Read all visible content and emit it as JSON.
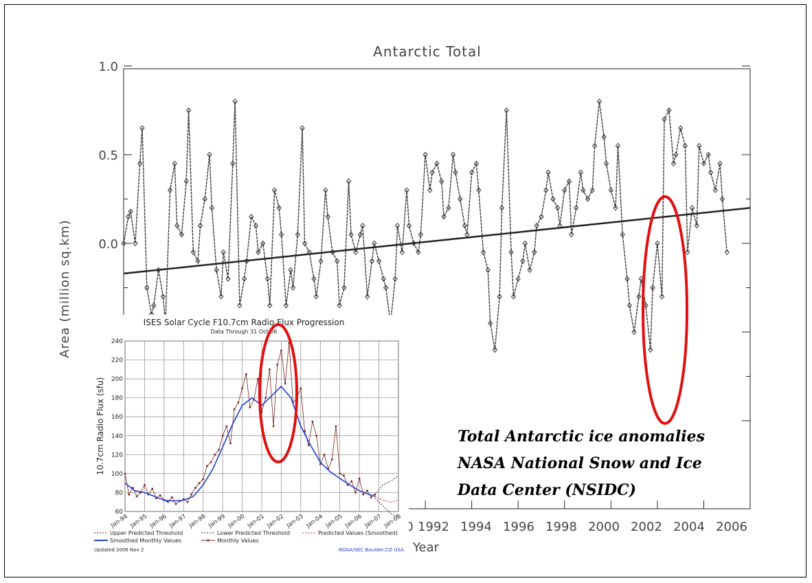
{
  "main_chart": {
    "title": "Antarctic Total",
    "ylabel": "Area (million sq.km)",
    "xlabel": "Year",
    "y_tick_labels": [
      "1.0",
      "0.5",
      "0.0"
    ],
    "x_tick_labels": [
      "0",
      "1992",
      "1994",
      "1996",
      "1998",
      "2000",
      "2002",
      "2004",
      "2006"
    ]
  },
  "inset_chart": {
    "title": "ISES Solar Cycle F10.7cm Radio Flux Progression",
    "subtitle": "Data Through 31 Oct 06",
    "ylabel": "10.7cm Radio Flux (sfu)",
    "y_tick_labels": [
      "60",
      "80",
      "100",
      "120",
      "140",
      "160",
      "180",
      "200",
      "220",
      "240"
    ],
    "x_tick_labels": [
      "Jan-94",
      "Jan-95",
      "Jan-96",
      "Jan-97",
      "Jan-98",
      "Jan-99",
      "Jan-00",
      "Jan-01",
      "Jan-02",
      "Jan-03",
      "Jan-04",
      "Jan-05",
      "Jan-06",
      "Jan-07",
      "Jan-08"
    ],
    "legend": [
      "Upper Predicted Threshold",
      "Lower Predicted Threshold",
      "Predicted Values (Smoothed)",
      "Smoothed Monthly Values",
      "Monthly Values"
    ],
    "updated": "Updated 2006 Nov 2",
    "credit": "NOAA/SEC Boulder,CO USA"
  },
  "caption_lines": [
    "Total Antarctic ice anomalies",
    "NASA National Snow and Ice",
    "Data Center (NSIDC)"
  ],
  "colors": {
    "highlight": "#e01010",
    "main_series": "#3a3a3a",
    "smoothed": "#1f3fd0",
    "monthly": "#7a2020",
    "predicted": "#d02020"
  },
  "chart_data": [
    {
      "type": "line",
      "title": "Antarctic Total",
      "xlabel": "Year",
      "ylabel": "Area (million sq.km)",
      "ylim": [
        -1.0,
        1.0
      ],
      "xlim": [
        1979,
        2006
      ],
      "x_ticks": [
        1992,
        1994,
        1996,
        1998,
        2000,
        2002,
        2004,
        2006
      ],
      "y_ticks": [
        1.0,
        0.5,
        0.0
      ],
      "trend_line": {
        "x": [
          1979,
          2006
        ],
        "y": [
          -0.17,
          0.2
        ]
      },
      "series": [
        {
          "x": [
            1979.0,
            1979.2,
            1979.3,
            1979.5,
            1979.7,
            1979.8,
            1980.0,
            1980.2,
            1980.3,
            1980.5,
            1980.7,
            1980.8,
            1981.0,
            1981.2,
            1981.3,
            1981.5,
            1981.7,
            1981.8,
            1982.0,
            1982.2,
            1982.3,
            1982.5,
            1982.7,
            1982.8,
            1983.0,
            1983.2,
            1983.3,
            1983.5,
            1983.7,
            1983.8,
            1984.0,
            1984.2,
            1984.3,
            1984.5,
            1984.7,
            1984.8,
            1985.0,
            1985.2,
            1985.3,
            1985.5,
            1985.7,
            1985.8,
            1986.0,
            1986.2,
            1986.3,
            1986.5,
            1986.7,
            1986.8,
            1987.0,
            1987.2,
            1987.3,
            1987.5,
            1987.7,
            1987.8,
            1988.0,
            1988.2,
            1988.3,
            1988.5,
            1988.7,
            1988.8,
            1989.0,
            1989.2,
            1989.3,
            1989.5,
            1989.7,
            1989.8,
            1990.0,
            1990.2,
            1990.3,
            1990.5,
            1990.7,
            1990.8,
            1991.0,
            1991.2,
            1991.3,
            1991.5,
            1991.7,
            1991.8,
            1992.0,
            1992.2,
            1992.3,
            1992.5,
            1992.7,
            1992.8,
            1993.0,
            1993.2,
            1993.3,
            1993.5,
            1993.7,
            1993.8,
            1994.0,
            1994.2,
            1994.3,
            1994.5,
            1994.7,
            1994.8,
            1995.0,
            1995.2,
            1995.3,
            1995.5,
            1995.7,
            1995.8,
            1996.0,
            1996.2,
            1996.3,
            1996.5,
            1996.7,
            1996.8,
            1997.0,
            1997.2,
            1997.3,
            1997.5,
            1997.7,
            1997.8,
            1998.0,
            1998.2,
            1998.3,
            1998.5,
            1998.7,
            1998.8,
            1999.0,
            1999.2,
            1999.3,
            1999.5,
            1999.7,
            1999.8,
            2000.0,
            2000.2,
            2000.3,
            2000.5,
            2000.7,
            2000.8,
            2001.0,
            2001.2,
            2001.3,
            2001.5,
            2001.7,
            2001.8,
            2002.0,
            2002.2,
            2002.3,
            2002.5,
            2002.7,
            2002.8,
            2003.0,
            2003.2,
            2003.3,
            2003.5,
            2003.7,
            2003.8,
            2004.0,
            2004.2,
            2004.3,
            2004.5,
            2004.7,
            2004.8,
            2005.0
          ],
          "y": [
            0.0,
            0.15,
            0.18,
            0.0,
            0.45,
            0.65,
            -0.25,
            -0.4,
            -0.35,
            -0.15,
            -0.3,
            -0.45,
            0.3,
            0.45,
            0.1,
            0.05,
            0.35,
            0.75,
            -0.05,
            -0.1,
            0.1,
            0.25,
            0.5,
            0.2,
            -0.15,
            -0.3,
            -0.05,
            -0.2,
            0.45,
            0.8,
            -0.35,
            -0.2,
            -0.1,
            0.15,
            0.1,
            -0.05,
            0.0,
            -0.2,
            -0.35,
            0.3,
            0.2,
            0.05,
            -0.35,
            -0.15,
            -0.25,
            0.05,
            0.65,
            0.0,
            -0.05,
            -0.2,
            -0.3,
            -0.1,
            0.3,
            0.15,
            -0.05,
            -0.1,
            -0.35,
            -0.25,
            0.35,
            0.05,
            -0.05,
            0.05,
            0.1,
            -0.3,
            -0.1,
            0.0,
            -0.1,
            -0.2,
            -0.25,
            -0.45,
            -0.2,
            0.1,
            -0.05,
            0.3,
            0.1,
            0.0,
            -0.05,
            0.05,
            0.5,
            0.3,
            0.4,
            0.45,
            0.35,
            0.15,
            0.2,
            0.5,
            0.4,
            0.25,
            0.1,
            0.05,
            0.4,
            0.45,
            0.3,
            -0.05,
            -0.15,
            -0.45,
            -0.6,
            -0.3,
            0.2,
            0.75,
            -0.05,
            -0.3,
            -0.2,
            -0.1,
            0.0,
            -0.15,
            -0.05,
            0.1,
            0.15,
            0.3,
            0.4,
            0.25,
            0.2,
            0.1,
            0.3,
            0.35,
            0.05,
            0.2,
            0.4,
            0.3,
            0.25,
            0.3,
            0.55,
            0.8,
            0.6,
            0.45,
            0.3,
            0.2,
            0.55,
            0.05,
            -0.2,
            -0.35,
            -0.5,
            -0.3,
            -0.2,
            -0.35,
            -0.6,
            -0.25,
            0.0,
            -0.3,
            0.7,
            0.75,
            0.45,
            0.5,
            0.65,
            0.55,
            -0.05,
            0.2,
            0.1,
            0.55,
            0.45,
            0.5,
            0.4,
            0.3,
            0.45,
            0.25,
            -0.05
          ]
        }
      ]
    },
    {
      "type": "line",
      "title": "ISES Solar Cycle F10.7cm Radio Flux Progression",
      "ylabel": "10.7cm Radio Flux (sfu)",
      "ylim": [
        60,
        240
      ],
      "xlim": [
        1994.0,
        2008.0
      ],
      "x_ticks": [
        "Jan-94",
        "Jan-95",
        "Jan-96",
        "Jan-97",
        "Jan-98",
        "Jan-99",
        "Jan-00",
        "Jan-01",
        "Jan-02",
        "Jan-03",
        "Jan-04",
        "Jan-05",
        "Jan-06",
        "Jan-07",
        "Jan-08"
      ],
      "y_ticks": [
        60,
        80,
        100,
        120,
        140,
        160,
        180,
        200,
        220,
        240
      ],
      "series": [
        {
          "name": "Smoothed Monthly Values",
          "x": [
            1994.0,
            1994.5,
            1995.0,
            1995.5,
            1996.0,
            1996.5,
            1997.0,
            1997.5,
            1998.0,
            1998.5,
            1999.0,
            1999.5,
            2000.0,
            2000.5,
            2001.0,
            2001.5,
            2002.0,
            2002.5,
            2003.0,
            2003.5,
            2004.0,
            2004.5,
            2005.0,
            2005.5,
            2006.0,
            2006.5,
            2006.8
          ],
          "y": [
            90,
            82,
            80,
            76,
            72,
            71,
            72,
            76,
            88,
            105,
            128,
            152,
            172,
            180,
            172,
            182,
            192,
            180,
            150,
            130,
            112,
            102,
            95,
            88,
            82,
            78,
            76
          ]
        },
        {
          "name": "Monthly Values",
          "x": [
            1994.0,
            1994.2,
            1994.4,
            1994.6,
            1994.8,
            1995.0,
            1995.2,
            1995.4,
            1995.6,
            1995.8,
            1996.0,
            1996.2,
            1996.4,
            1996.6,
            1996.8,
            1997.0,
            1997.2,
            1997.4,
            1997.6,
            1997.8,
            1998.0,
            1998.2,
            1998.4,
            1998.6,
            1998.8,
            1999.0,
            1999.2,
            1999.4,
            1999.6,
            1999.8,
            2000.0,
            2000.2,
            2000.4,
            2000.6,
            2000.8,
            2001.0,
            2001.2,
            2001.4,
            2001.6,
            2001.8,
            2002.0,
            2002.2,
            2002.4,
            2002.6,
            2002.8,
            2003.0,
            2003.2,
            2003.4,
            2003.6,
            2003.8,
            2004.0,
            2004.2,
            2004.4,
            2004.6,
            2004.8,
            2005.0,
            2005.2,
            2005.4,
            2005.6,
            2005.8,
            2006.0,
            2006.2,
            2006.4,
            2006.6,
            2006.8
          ],
          "y": [
            100,
            78,
            85,
            76,
            80,
            88,
            78,
            84,
            74,
            77,
            72,
            70,
            75,
            68,
            71,
            73,
            70,
            78,
            85,
            90,
            94,
            108,
            112,
            120,
            125,
            140,
            150,
            132,
            168,
            175,
            190,
            205,
            170,
            178,
            200,
            165,
            180,
            210,
            150,
            215,
            230,
            195,
            238,
            175,
            180,
            190,
            145,
            130,
            155,
            140,
            110,
            120,
            105,
            115,
            150,
            100,
            98,
            88,
            92,
            80,
            95,
            78,
            82,
            75,
            78
          ]
        },
        {
          "name": "Predicted Values (Smoothed)",
          "x": [
            2006.8,
            2007.2,
            2007.6,
            2008.0
          ],
          "y": [
            76,
            72,
            70,
            72
          ]
        },
        {
          "name": "Upper Predicted Threshold",
          "x": [
            2006.8,
            2007.2,
            2007.6,
            2008.0
          ],
          "y": [
            78,
            88,
            92,
            98
          ]
        },
        {
          "name": "Lower Predicted Threshold",
          "x": [
            2006.8,
            2007.2,
            2007.6,
            2008.0
          ],
          "y": [
            74,
            66,
            58,
            54
          ]
        }
      ]
    }
  ]
}
